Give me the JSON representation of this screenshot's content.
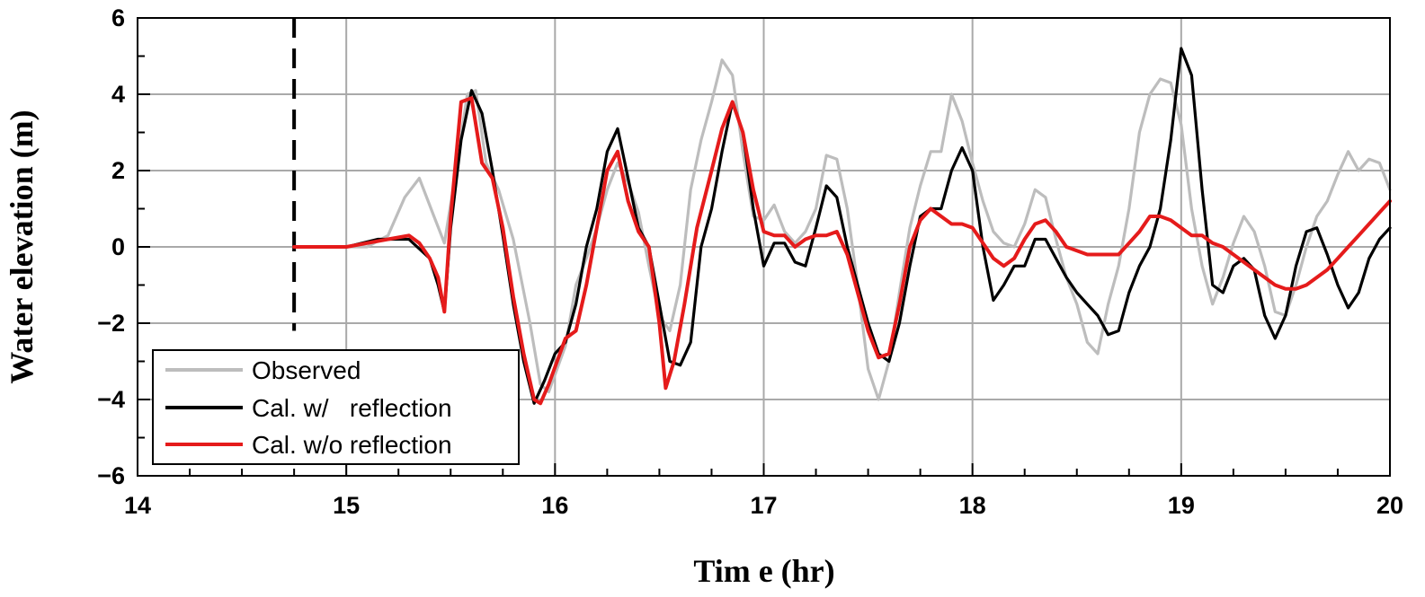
{
  "chart_data": {
    "type": "line",
    "xlabel": "Tim e (hr)",
    "ylabel": "Water elevation (m)",
    "xlim": [
      14,
      20
    ],
    "ylim": [
      -6,
      6
    ],
    "x_ticks": [
      14,
      15,
      16,
      17,
      18,
      19,
      20
    ],
    "y_ticks": [
      -6,
      -4,
      -2,
      0,
      2,
      4,
      6
    ],
    "x_tick_labels": [
      "14",
      "15",
      "16",
      "17",
      "18",
      "19",
      "20"
    ],
    "y_tick_labels": [
      "−6",
      "−4",
      "−2",
      "0",
      "2",
      "4",
      "6"
    ],
    "grid": true,
    "legend_position": "bottom-left",
    "reference_line_x": 14.75,
    "colors": {
      "observed": "#bdbdbd",
      "with_reflection": "#000000",
      "without_reflection": "#e51b1b"
    },
    "series": [
      {
        "name": "Observed",
        "color": "#bdbdbd",
        "x": [
          15.0,
          15.1,
          15.2,
          15.28,
          15.35,
          15.42,
          15.47,
          15.52,
          15.58,
          15.62,
          15.67,
          15.73,
          15.8,
          15.88,
          15.93,
          15.97,
          16.05,
          16.1,
          16.15,
          16.2,
          16.25,
          16.3,
          16.35,
          16.4,
          16.45,
          16.5,
          16.55,
          16.6,
          16.65,
          16.7,
          16.75,
          16.8,
          16.85,
          16.9,
          16.95,
          17.0,
          17.05,
          17.1,
          17.15,
          17.2,
          17.25,
          17.3,
          17.35,
          17.4,
          17.45,
          17.5,
          17.55,
          17.6,
          17.65,
          17.7,
          17.75,
          17.8,
          17.85,
          17.9,
          17.95,
          18.0,
          18.05,
          18.1,
          18.15,
          18.2,
          18.25,
          18.3,
          18.35,
          18.4,
          18.45,
          18.5,
          18.55,
          18.6,
          18.65,
          18.7,
          18.75,
          18.8,
          18.85,
          18.9,
          18.95,
          19.0,
          19.05,
          19.1,
          19.15,
          19.2,
          19.25,
          19.3,
          19.35,
          19.4,
          19.45,
          19.5,
          19.55,
          19.6,
          19.65,
          19.7,
          19.75,
          19.8,
          19.85,
          19.9,
          19.95,
          20.0
        ],
        "y": [
          0.0,
          0.0,
          0.3,
          1.3,
          1.8,
          0.8,
          0.1,
          1.8,
          4.0,
          4.1,
          2.2,
          1.5,
          0.2,
          -2.0,
          -3.6,
          -3.8,
          -2.6,
          -1.0,
          -0.3,
          0.5,
          1.5,
          2.2,
          1.7,
          0.9,
          -0.5,
          -1.8,
          -2.2,
          -1.0,
          1.5,
          2.8,
          3.8,
          4.9,
          4.5,
          2.5,
          0.8,
          0.7,
          1.1,
          0.4,
          0.1,
          0.4,
          1.0,
          2.4,
          2.3,
          1.0,
          -1.0,
          -3.2,
          -4.0,
          -3.0,
          -1.2,
          0.5,
          1.6,
          2.5,
          2.5,
          4.0,
          3.3,
          2.2,
          1.2,
          0.4,
          0.1,
          0.0,
          0.6,
          1.5,
          1.3,
          0.2,
          -0.8,
          -1.5,
          -2.5,
          -2.8,
          -1.5,
          -0.5,
          1.0,
          3.0,
          4.0,
          4.4,
          4.3,
          3.2,
          1.0,
          -0.5,
          -1.5,
          -0.8,
          0.1,
          0.8,
          0.4,
          -0.5,
          -1.7,
          -1.8,
          -1.0,
          0.0,
          0.8,
          1.2,
          1.9,
          2.5,
          2.0,
          2.3,
          2.2,
          1.5
        ]
      },
      {
        "name": "Cal. w/   reflection",
        "color": "#000000",
        "x": [
          14.75,
          15.0,
          15.15,
          15.3,
          15.4,
          15.44,
          15.47,
          15.5,
          15.55,
          15.6,
          15.65,
          15.7,
          15.75,
          15.8,
          15.85,
          15.9,
          15.95,
          16.0,
          16.05,
          16.1,
          16.15,
          16.2,
          16.25,
          16.3,
          16.35,
          16.4,
          16.45,
          16.5,
          16.55,
          16.6,
          16.65,
          16.7,
          16.75,
          16.8,
          16.85,
          16.9,
          16.95,
          17.0,
          17.05,
          17.1,
          17.15,
          17.2,
          17.25,
          17.3,
          17.35,
          17.4,
          17.45,
          17.5,
          17.55,
          17.6,
          17.65,
          17.7,
          17.75,
          17.8,
          17.85,
          17.9,
          17.95,
          18.0,
          18.05,
          18.1,
          18.15,
          18.2,
          18.25,
          18.3,
          18.35,
          18.4,
          18.45,
          18.5,
          18.55,
          18.6,
          18.65,
          18.7,
          18.75,
          18.8,
          18.85,
          18.9,
          18.95,
          19.0,
          19.05,
          19.1,
          19.15,
          19.2,
          19.25,
          19.3,
          19.35,
          19.4,
          19.45,
          19.5,
          19.55,
          19.6,
          19.65,
          19.7,
          19.75,
          19.8,
          19.85,
          19.9,
          19.95,
          20.0
        ],
        "y": [
          0.0,
          0.0,
          0.2,
          0.2,
          -0.3,
          -1.0,
          -1.7,
          0.5,
          2.8,
          4.1,
          3.5,
          2.0,
          0.3,
          -1.5,
          -3.0,
          -4.1,
          -3.5,
          -2.8,
          -2.5,
          -1.5,
          0.0,
          1.0,
          2.5,
          3.1,
          1.8,
          0.5,
          0.0,
          -1.5,
          -3.0,
          -3.1,
          -2.5,
          0.0,
          1.0,
          2.5,
          3.8,
          3.0,
          1.0,
          -0.5,
          0.1,
          0.1,
          -0.4,
          -0.5,
          0.5,
          1.6,
          1.3,
          0.0,
          -1.0,
          -2.0,
          -2.8,
          -3.0,
          -2.0,
          -0.5,
          0.8,
          1.0,
          1.0,
          2.0,
          2.6,
          2.0,
          0.0,
          -1.4,
          -1.0,
          -0.5,
          -0.5,
          0.2,
          0.2,
          -0.3,
          -0.8,
          -1.2,
          -1.5,
          -1.8,
          -2.3,
          -2.2,
          -1.2,
          -0.5,
          0.0,
          1.0,
          2.8,
          5.2,
          4.5,
          1.5,
          -1.0,
          -1.2,
          -0.5,
          -0.3,
          -0.6,
          -1.8,
          -2.4,
          -1.8,
          -0.5,
          0.4,
          0.5,
          -0.2,
          -1.0,
          -1.6,
          -1.2,
          -0.3,
          0.2,
          0.5
        ]
      },
      {
        "name": "Cal. w/o reflection",
        "color": "#e51b1b",
        "x": [
          14.75,
          15.0,
          15.1,
          15.2,
          15.3,
          15.35,
          15.4,
          15.44,
          15.47,
          15.5,
          15.55,
          15.6,
          15.65,
          15.7,
          15.75,
          15.8,
          15.85,
          15.9,
          15.93,
          15.97,
          16.05,
          16.1,
          16.15,
          16.2,
          16.25,
          16.3,
          16.35,
          16.4,
          16.45,
          16.5,
          16.53,
          16.57,
          16.62,
          16.68,
          16.75,
          16.8,
          16.85,
          16.9,
          16.95,
          17.0,
          17.05,
          17.1,
          17.15,
          17.2,
          17.25,
          17.3,
          17.35,
          17.4,
          17.45,
          17.5,
          17.55,
          17.6,
          17.65,
          17.7,
          17.75,
          17.8,
          17.85,
          17.9,
          17.95,
          18.0,
          18.05,
          18.1,
          18.15,
          18.2,
          18.25,
          18.3,
          18.35,
          18.4,
          18.45,
          18.5,
          18.55,
          18.6,
          18.65,
          18.7,
          18.75,
          18.8,
          18.85,
          18.9,
          18.95,
          19.0,
          19.05,
          19.1,
          19.15,
          19.2,
          19.25,
          19.3,
          19.35,
          19.4,
          19.45,
          19.5,
          19.55,
          19.6,
          19.65,
          19.7,
          19.75,
          19.8,
          19.85,
          19.9,
          19.95,
          20.0
        ],
        "y": [
          0.0,
          0.0,
          0.1,
          0.2,
          0.3,
          0.1,
          -0.3,
          -0.8,
          -1.7,
          0.8,
          3.8,
          3.9,
          2.2,
          1.8,
          0.5,
          -1.3,
          -2.8,
          -4.0,
          -4.1,
          -3.6,
          -2.4,
          -2.2,
          -1.0,
          0.5,
          2.0,
          2.5,
          1.2,
          0.4,
          0.0,
          -2.0,
          -3.7,
          -3.0,
          -1.5,
          0.5,
          2.0,
          3.1,
          3.8,
          3.0,
          1.5,
          0.4,
          0.3,
          0.3,
          0.0,
          0.2,
          0.3,
          0.3,
          0.4,
          -0.2,
          -1.2,
          -2.2,
          -2.9,
          -2.8,
          -1.5,
          0.0,
          0.7,
          1.0,
          0.8,
          0.6,
          0.6,
          0.5,
          0.1,
          -0.3,
          -0.5,
          -0.3,
          0.2,
          0.6,
          0.7,
          0.4,
          0.0,
          -0.1,
          -0.2,
          -0.2,
          -0.2,
          -0.2,
          0.1,
          0.4,
          0.8,
          0.8,
          0.7,
          0.5,
          0.3,
          0.3,
          0.1,
          0.0,
          -0.2,
          -0.4,
          -0.6,
          -0.8,
          -1.0,
          -1.1,
          -1.1,
          -1.0,
          -0.8,
          -0.6,
          -0.3,
          0.0,
          0.3,
          0.6,
          0.9,
          1.2
        ]
      }
    ]
  }
}
